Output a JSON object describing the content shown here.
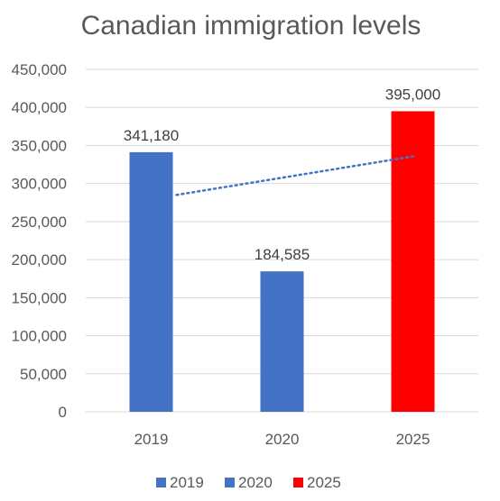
{
  "chart_data": {
    "type": "bar",
    "title": "Canadian immigration levels",
    "categories": [
      "2019",
      "2020",
      "2025"
    ],
    "series": [
      {
        "name": "2019",
        "color": "#4472C4",
        "values": [
          341180,
          null,
          null
        ]
      },
      {
        "name": "2020",
        "color": "#4472C4",
        "values": [
          null,
          184585,
          null
        ]
      },
      {
        "name": "2025",
        "color": "#FF0000",
        "values": [
          null,
          null,
          395000
        ]
      }
    ],
    "data_labels": [
      "341,180",
      "184,585",
      "395,000"
    ],
    "y_ticks": [
      "0",
      "50,000",
      "100,000",
      "150,000",
      "200,000",
      "250,000",
      "300,000",
      "350,000",
      "400,000",
      "450,000"
    ],
    "ylim": [
      0,
      450000
    ],
    "grid": true,
    "legend": "bottom",
    "trendline": {
      "style": "dotted",
      "color": "#4472C4",
      "start_value": 285000,
      "end_value": 336000
    }
  }
}
